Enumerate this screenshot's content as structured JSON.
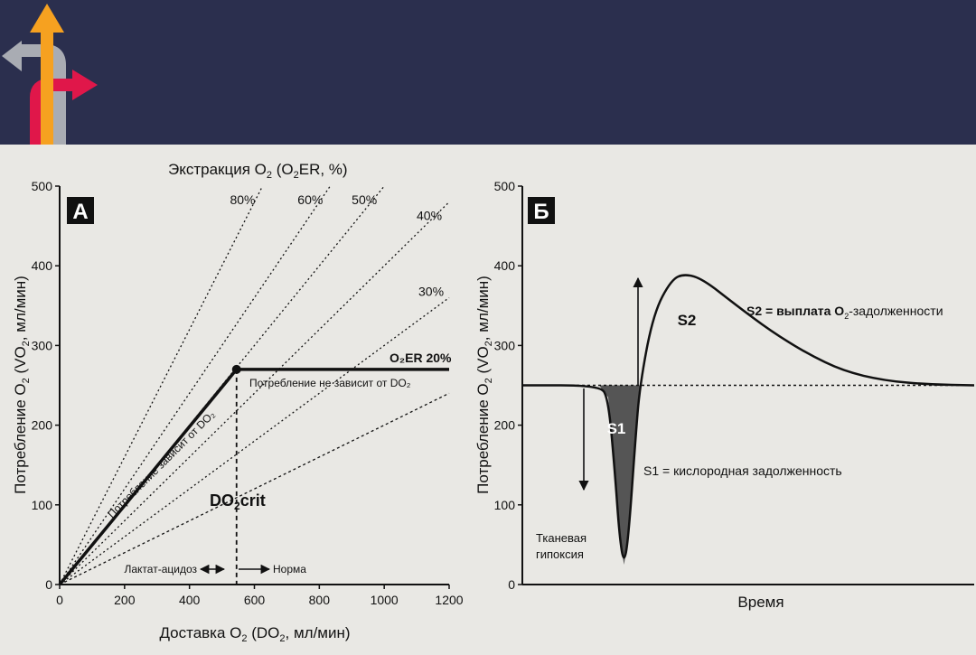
{
  "header": {
    "logo_icon": "arrows-logo-icon",
    "background": "#2b2f4e"
  },
  "chart_data": [
    {
      "type": "line",
      "panel_label": "А",
      "xlabel_main": "Доставка O",
      "xlabel_sub": "2",
      "xlabel_rest": " (DO",
      "xlabel_sub2": "2",
      "xlabel_end": ", мл/мин)",
      "ylabel_main": "Потребление O",
      "ylabel_sub": "2",
      "ylabel_rest": " (VO",
      "ylabel_sub2": "2",
      "ylabel_end": ", мл/мин)",
      "toplabel_main": "Экстракция O",
      "toplabel_sub": "2",
      "toplabel_rest": " (O",
      "toplabel_sub2": "2",
      "toplabel_end": "ER, %)",
      "xlim": [
        0,
        1200
      ],
      "ylim": [
        0,
        500
      ],
      "xticks": [
        0,
        200,
        400,
        600,
        800,
        1000,
        1200
      ],
      "yticks": [
        0,
        100,
        200,
        300,
        400,
        500
      ],
      "xtick_labels": [
        "0",
        "200",
        "400",
        "600",
        "800",
        "1000",
        "1200"
      ],
      "ytick_labels": [
        "0",
        "100",
        "200",
        "300",
        "400",
        "500"
      ],
      "extraction_lines": [
        {
          "label": "80%",
          "ratio": 0.8
        },
        {
          "label": "60%",
          "ratio": 0.6
        },
        {
          "label": "50%",
          "ratio": 0.5
        },
        {
          "label": "40%",
          "ratio": 0.4
        },
        {
          "label": "30%",
          "ratio": 0.3
        },
        {
          "label": "O₂ER 20%",
          "ratio": 0.2
        }
      ],
      "consumption_curve": [
        {
          "x": 0,
          "y": 0
        },
        {
          "x": 545,
          "y": 270
        },
        {
          "x": 1200,
          "y": 270
        }
      ],
      "critical_point": {
        "x": 545,
        "y": 270
      },
      "critical_label_main": "DO",
      "critical_label_sub": "2",
      "critical_label_end": "crit",
      "dependent_label": "Потребление зависит от DO₂",
      "independent_label": "Потребление не зависит от DO₂",
      "left_zone": "Лактат-ацидоз",
      "right_zone": "Норма"
    },
    {
      "type": "line",
      "panel_label": "Б",
      "xlabel": "Время",
      "ylabel_main": "Потребление O",
      "ylabel_sub": "2",
      "ylabel_rest": " (VO",
      "ylabel_sub2": "2",
      "ylabel_end": ", мл/мин)",
      "ylim": [
        0,
        500
      ],
      "yticks": [
        0,
        100,
        200,
        300,
        400,
        500
      ],
      "ytick_labels": [
        "0",
        "100",
        "200",
        "300",
        "400",
        "500"
      ],
      "baseline": 250,
      "curve": [
        {
          "t": 0.0,
          "y": 250
        },
        {
          "t": 0.17,
          "y": 250
        },
        {
          "t": 0.19,
          "y": 235
        },
        {
          "t": 0.205,
          "y": 140
        },
        {
          "t": 0.215,
          "y": 60
        },
        {
          "t": 0.225,
          "y": 25
        },
        {
          "t": 0.235,
          "y": 60
        },
        {
          "t": 0.25,
          "y": 180
        },
        {
          "t": 0.26,
          "y": 250
        },
        {
          "t": 0.29,
          "y": 340
        },
        {
          "t": 0.33,
          "y": 383
        },
        {
          "t": 0.36,
          "y": 390
        },
        {
          "t": 0.4,
          "y": 383
        },
        {
          "t": 0.47,
          "y": 352
        },
        {
          "t": 0.55,
          "y": 318
        },
        {
          "t": 0.63,
          "y": 290
        },
        {
          "t": 0.71,
          "y": 268
        },
        {
          "t": 0.8,
          "y": 256
        },
        {
          "t": 0.9,
          "y": 251
        },
        {
          "t": 1.0,
          "y": 250
        }
      ],
      "s1_tag": "S1",
      "s2_tag": "S2",
      "s1_label": "S1 = кислородная задолженность",
      "s2_label_main": "S2 = выплата O",
      "s2_label_sub": "2",
      "s2_label_end": "-задолженности",
      "hypoxia_label_1": "Тканевая",
      "hypoxia_label_2": "гипоксия"
    }
  ]
}
